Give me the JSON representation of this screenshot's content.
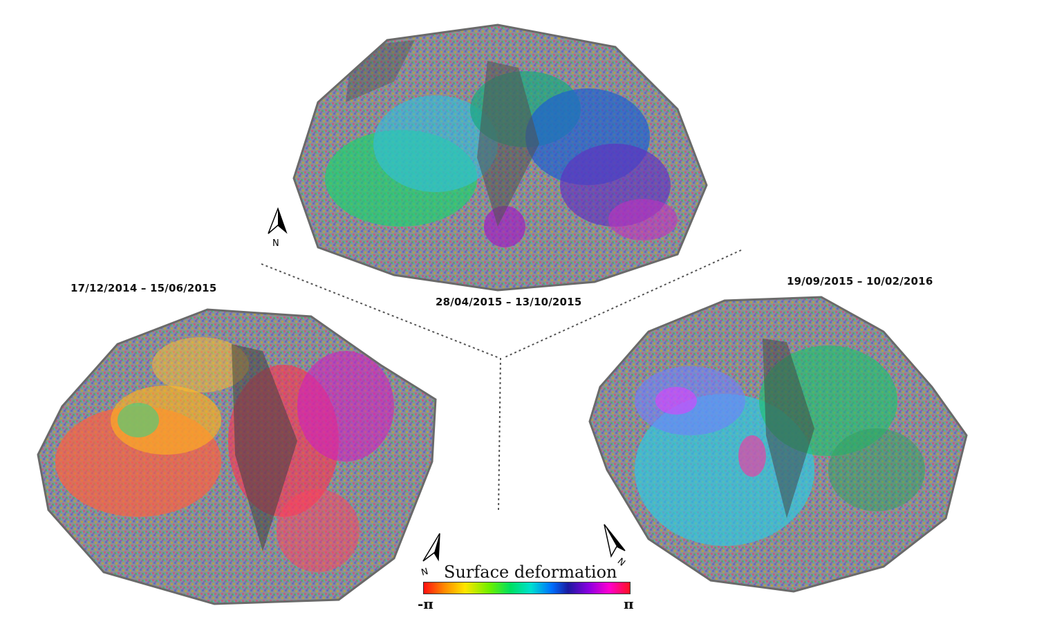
{
  "panels": {
    "top": {
      "date_range": "28/04/2015  – 13/10/2015",
      "dominant_colors": [
        "#00d070",
        "#20b0ff",
        "#3040d0",
        "#a000c0"
      ]
    },
    "left": {
      "date_range": "17/12/2014  – 15/06/2015",
      "dominant_colors": [
        "#ff5040",
        "#ffa020",
        "#ff2060",
        "#c020c0"
      ]
    },
    "right": {
      "date_range": "19/09/2015  – 10/02/2016",
      "dominant_colors": [
        "#30c8e0",
        "#20d070",
        "#6080ff",
        "#c040ff"
      ]
    }
  },
  "north_arrows": {
    "label": "N",
    "icon": "north-arrow-icon"
  },
  "legend": {
    "title": "Surface deformation",
    "min_label": "-π",
    "max_label": "π",
    "colormap": [
      "#ff1010",
      "#ffe600",
      "#00e060",
      "#00e0d0",
      "#0070ff",
      "#8a00e0",
      "#ff00d0",
      "#ff1020"
    ]
  }
}
